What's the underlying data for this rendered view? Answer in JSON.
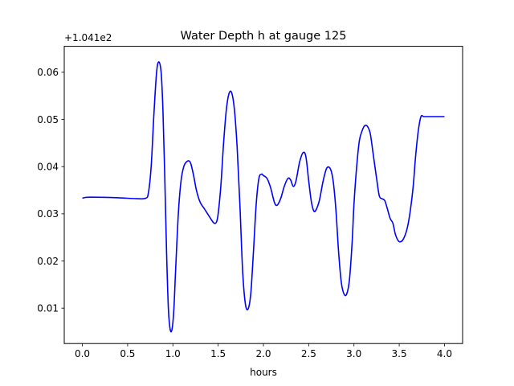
{
  "chart_data": {
    "type": "line",
    "title": "Water Depth h at gauge 125",
    "xlabel": "hours",
    "ylabel": "",
    "y_offset_label": "+1.041e2",
    "xlim": [
      -0.2,
      4.2
    ],
    "ylim": [
      0.0025,
      0.0655
    ],
    "x_ticks": [
      0.0,
      0.5,
      1.0,
      1.5,
      2.0,
      2.5,
      3.0,
      3.5,
      4.0
    ],
    "x_tick_labels": [
      "0.0",
      "0.5",
      "1.0",
      "1.5",
      "2.0",
      "2.5",
      "3.0",
      "3.5",
      "4.0"
    ],
    "y_ticks": [
      0.01,
      0.02,
      0.03,
      0.04,
      0.05,
      0.06
    ],
    "y_tick_labels": [
      "0.01",
      "0.02",
      "0.03",
      "0.04",
      "0.05",
      "0.06"
    ],
    "grid": false,
    "legend": "none",
    "series": [
      {
        "color": "#0000ff",
        "x": [
          0.0,
          0.05,
          0.2,
          0.4,
          0.6,
          0.7,
          0.73,
          0.76,
          0.79,
          0.82,
          0.845,
          0.87,
          0.89,
          0.91,
          0.93,
          0.95,
          0.97,
          0.99,
          1.01,
          1.03,
          1.06,
          1.09,
          1.12,
          1.15,
          1.18,
          1.2,
          1.23,
          1.26,
          1.3,
          1.35,
          1.4,
          1.45,
          1.48,
          1.5,
          1.53,
          1.56,
          1.59,
          1.62,
          1.65,
          1.68,
          1.71,
          1.74,
          1.77,
          1.8,
          1.83,
          1.86,
          1.89,
          1.92,
          1.95,
          1.98,
          2.0,
          2.04,
          2.08,
          2.12,
          2.15,
          2.19,
          2.23,
          2.27,
          2.3,
          2.33,
          2.36,
          2.4,
          2.44,
          2.47,
          2.5,
          2.53,
          2.56,
          2.59,
          2.62,
          2.66,
          2.7,
          2.74,
          2.77,
          2.8,
          2.83,
          2.86,
          2.89,
          2.92,
          2.95,
          2.98,
          3.0,
          3.03,
          3.06,
          3.09,
          3.12,
          3.15,
          3.18,
          3.21,
          3.25,
          3.28,
          3.31,
          3.34,
          3.37,
          3.4,
          3.43,
          3.46,
          3.5,
          3.55,
          3.6,
          3.65,
          3.68,
          3.71,
          3.74,
          3.77,
          3.8,
          3.83,
          3.87,
          3.91,
          3.95,
          3.98,
          4.0
        ],
        "y": [
          0.0333,
          0.0335,
          0.0335,
          0.0334,
          0.0332,
          0.0333,
          0.0345,
          0.04,
          0.051,
          0.06,
          0.0622,
          0.06,
          0.052,
          0.038,
          0.022,
          0.01,
          0.0055,
          0.0055,
          0.0095,
          0.018,
          0.03,
          0.037,
          0.04,
          0.041,
          0.0412,
          0.0405,
          0.038,
          0.035,
          0.0325,
          0.031,
          0.0295,
          0.0281,
          0.0282,
          0.03,
          0.036,
          0.045,
          0.052,
          0.0555,
          0.0556,
          0.052,
          0.044,
          0.032,
          0.018,
          0.011,
          0.0098,
          0.013,
          0.022,
          0.032,
          0.0375,
          0.0384,
          0.0381,
          0.0375,
          0.0355,
          0.0325,
          0.0318,
          0.0332,
          0.0358,
          0.0375,
          0.0372,
          0.0358,
          0.037,
          0.041,
          0.043,
          0.042,
          0.037,
          0.0325,
          0.0305,
          0.0312,
          0.033,
          0.037,
          0.0397,
          0.0395,
          0.037,
          0.031,
          0.022,
          0.0155,
          0.013,
          0.013,
          0.016,
          0.024,
          0.032,
          0.04,
          0.0455,
          0.0476,
          0.0487,
          0.0485,
          0.047,
          0.043,
          0.0375,
          0.0338,
          0.0332,
          0.0328,
          0.031,
          0.029,
          0.028,
          0.0255,
          0.0241,
          0.0248,
          0.028,
          0.035,
          0.042,
          0.0475,
          0.0506,
          0.0506,
          0.0506,
          0.0506,
          0.0506,
          0.0506,
          0.0506,
          0.0506,
          0.0506
        ]
      }
    ]
  }
}
